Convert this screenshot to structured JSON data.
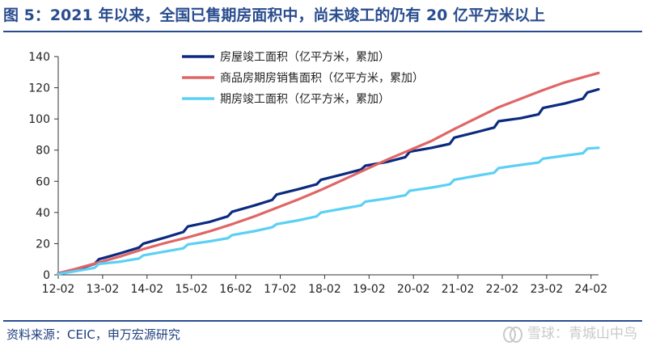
{
  "title": "图 5：2021 年以来，全国已售期房面积中，尚未竣工的仍有 20 亿平方米以上",
  "source": "资料来源：CEIC，申万宏源研究",
  "watermark": "雪球：青城山中鸟",
  "colors": {
    "title": "#2a4d8f",
    "axis": "#333333"
  },
  "chart_data": {
    "type": "line",
    "xlabel": "",
    "ylabel": "",
    "ylim": [
      0,
      140
    ],
    "yticks": [
      0,
      20,
      40,
      60,
      80,
      100,
      120,
      140
    ],
    "xlim": [
      2012.083,
      2024.25
    ],
    "xticks": [
      "12-02",
      "13-02",
      "14-02",
      "15-02",
      "16-02",
      "17-02",
      "18-02",
      "19-02",
      "20-02",
      "21-02",
      "22-02",
      "23-02",
      "24-02"
    ],
    "xtick_values": [
      2012.083,
      2013.083,
      2014.083,
      2015.083,
      2016.083,
      2017.083,
      2018.083,
      2019.083,
      2020.083,
      2021.083,
      2022.083,
      2023.083,
      2024.083
    ],
    "grid": false,
    "legend_position": "top-center",
    "series": [
      {
        "name": "房屋竣工面积（亿平方米，累加）",
        "color": "#0b2a80",
        "width": 3.2,
        "points": [
          [
            2012.083,
            1.0
          ],
          [
            2012.5,
            3.5
          ],
          [
            2012.9,
            7.0
          ],
          [
            2013.0,
            10.0
          ],
          [
            2013.25,
            12.0
          ],
          [
            2013.5,
            14.0
          ],
          [
            2013.9,
            17.5
          ],
          [
            2014.0,
            20.0
          ],
          [
            2014.5,
            24.0
          ],
          [
            2014.9,
            27.5
          ],
          [
            2015.0,
            31.0
          ],
          [
            2015.5,
            34.0
          ],
          [
            2015.9,
            37.5
          ],
          [
            2016.0,
            40.5
          ],
          [
            2016.5,
            44.5
          ],
          [
            2016.9,
            48.0
          ],
          [
            2017.0,
            51.5
          ],
          [
            2017.5,
            55.0
          ],
          [
            2017.9,
            58.0
          ],
          [
            2018.0,
            61.0
          ],
          [
            2018.5,
            64.5
          ],
          [
            2018.9,
            67.5
          ],
          [
            2019.0,
            70.0
          ],
          [
            2019.5,
            72.5
          ],
          [
            2019.9,
            75.5
          ],
          [
            2020.0,
            79.0
          ],
          [
            2020.5,
            81.5
          ],
          [
            2020.9,
            84.0
          ],
          [
            2021.0,
            88.0
          ],
          [
            2021.5,
            91.5
          ],
          [
            2021.9,
            94.5
          ],
          [
            2022.0,
            98.5
          ],
          [
            2022.5,
            100.5
          ],
          [
            2022.9,
            103.0
          ],
          [
            2023.0,
            107.0
          ],
          [
            2023.5,
            110.0
          ],
          [
            2023.9,
            113.0
          ],
          [
            2024.0,
            117.0
          ],
          [
            2024.25,
            119.0
          ]
        ]
      },
      {
        "name": "商品房期房销售面积（亿平方米，累加）",
        "color": "#e06666",
        "width": 3.2,
        "points": [
          [
            2012.083,
            1.0
          ],
          [
            2012.5,
            4.0
          ],
          [
            2013.0,
            8.0
          ],
          [
            2013.5,
            12.0
          ],
          [
            2014.0,
            16.5
          ],
          [
            2014.5,
            20.5
          ],
          [
            2015.0,
            24.0
          ],
          [
            2015.5,
            28.0
          ],
          [
            2016.0,
            32.5
          ],
          [
            2016.5,
            37.5
          ],
          [
            2017.0,
            43.0
          ],
          [
            2017.5,
            48.5
          ],
          [
            2018.0,
            54.5
          ],
          [
            2018.5,
            61.0
          ],
          [
            2019.0,
            67.5
          ],
          [
            2019.5,
            74.0
          ],
          [
            2020.0,
            80.0
          ],
          [
            2020.5,
            86.0
          ],
          [
            2021.0,
            93.5
          ],
          [
            2021.5,
            100.5
          ],
          [
            2022.0,
            107.5
          ],
          [
            2022.5,
            113.0
          ],
          [
            2023.0,
            118.5
          ],
          [
            2023.5,
            123.5
          ],
          [
            2024.0,
            127.5
          ],
          [
            2024.25,
            129.5
          ]
        ]
      },
      {
        "name": "期房竣工面积（亿平方米，累加）",
        "color": "#5bd0f5",
        "width": 3.2,
        "points": [
          [
            2012.083,
            0.5
          ],
          [
            2012.5,
            2.5
          ],
          [
            2012.9,
            4.5
          ],
          [
            2013.0,
            7.0
          ],
          [
            2013.5,
            8.5
          ],
          [
            2013.9,
            10.5
          ],
          [
            2014.0,
            12.5
          ],
          [
            2014.5,
            15.0
          ],
          [
            2014.9,
            17.0
          ],
          [
            2015.0,
            19.5
          ],
          [
            2015.5,
            21.5
          ],
          [
            2015.9,
            23.5
          ],
          [
            2016.0,
            25.5
          ],
          [
            2016.5,
            28.0
          ],
          [
            2016.9,
            30.5
          ],
          [
            2017.0,
            32.5
          ],
          [
            2017.5,
            35.0
          ],
          [
            2017.9,
            37.5
          ],
          [
            2018.0,
            40.0
          ],
          [
            2018.5,
            42.5
          ],
          [
            2018.9,
            44.5
          ],
          [
            2019.0,
            47.0
          ],
          [
            2019.5,
            49.0
          ],
          [
            2019.9,
            51.0
          ],
          [
            2020.0,
            54.0
          ],
          [
            2020.5,
            56.0
          ],
          [
            2020.9,
            58.0
          ],
          [
            2021.0,
            61.0
          ],
          [
            2021.5,
            63.5
          ],
          [
            2021.9,
            65.5
          ],
          [
            2022.0,
            68.5
          ],
          [
            2022.5,
            70.5
          ],
          [
            2022.9,
            72.0
          ],
          [
            2023.0,
            74.5
          ],
          [
            2023.5,
            76.5
          ],
          [
            2023.9,
            78.0
          ],
          [
            2024.0,
            81.0
          ],
          [
            2024.25,
            81.5
          ]
        ]
      }
    ]
  }
}
